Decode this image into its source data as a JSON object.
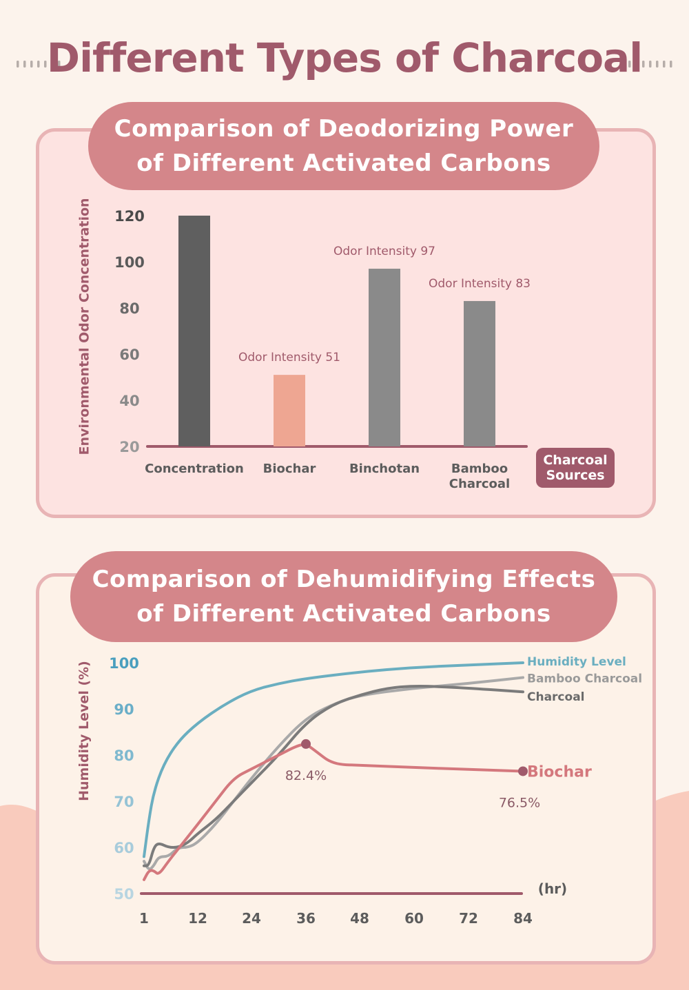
{
  "title": "Different Types of Charcoal",
  "colors": {
    "title": "#a05a6b",
    "pill": "#d4868a",
    "concentration": "#5f5f5f",
    "biochar": "#eea692",
    "binchotan": "#8a8a8a",
    "bamboo": "#8a8a8a",
    "humidity": "#6aaec0",
    "bamboo_line": "#a9a9a9",
    "charcoal_line": "#7b7b7b",
    "biochar_line": "#d4787d",
    "axis": "#a05a6b"
  },
  "odor_chart": {
    "title_line1": "Comparison of Deodorizing Power",
    "title_line2": "of Different Activated Carbons",
    "source_badge_line1": "Charcoal",
    "source_badge_line2": "Sources",
    "chart_data": {
      "type": "bar",
      "title": "Comparison of Deodorizing Power of Different Activated Carbons",
      "ylabel": "Environmental Odor Concentration",
      "xlabel": "Charcoal Sources",
      "ylim": [
        20,
        120
      ],
      "yticks": [
        120,
        100,
        80,
        60,
        40,
        20
      ],
      "categories": [
        "Concentration",
        "Biochar",
        "Binchotan",
        "Bamboo Charcoal"
      ],
      "category_lines": [
        [
          "Concentration"
        ],
        [
          "Biochar"
        ],
        [
          "Binchotan"
        ],
        [
          "Bamboo",
          "Charcoal"
        ]
      ],
      "values": [
        120,
        51,
        97,
        83
      ],
      "labels": [
        "",
        "Odor Intensity 51",
        "Odor Intensity 97",
        "Odor Intensity 83"
      ]
    }
  },
  "humidity_chart": {
    "title_line1": "Comparison of Dehumidifying Effects",
    "title_line2": "of Different Activated Carbons",
    "chart_data": {
      "type": "line",
      "title": "Comparison of Dehumidifying Effects of Different Activated Carbons",
      "ylabel": "Humidity Level (%)",
      "xlabel": "(hr)",
      "xlim": [
        1,
        84
      ],
      "ylim": [
        50,
        100
      ],
      "xticks": [
        1,
        12,
        24,
        36,
        48,
        60,
        72,
        84
      ],
      "yticks": [
        100,
        90,
        80,
        70,
        60,
        50
      ],
      "series": [
        {
          "name": "Humidity Level",
          "x": [
            1,
            2,
            3,
            5,
            8,
            12,
            18,
            24,
            30,
            36,
            48,
            60,
            72,
            84
          ],
          "values": [
            58,
            66,
            72,
            78,
            83,
            87,
            91,
            94,
            95.5,
            96.6,
            98,
            99,
            99.5,
            100
          ]
        },
        {
          "name": "Bamboo Charcoal",
          "x": [
            1,
            2,
            3,
            4,
            6,
            8,
            10,
            12,
            16,
            20,
            24,
            30,
            36,
            42,
            48,
            60,
            72,
            84
          ],
          "values": [
            57,
            55,
            56,
            58,
            58,
            60,
            60,
            61,
            65,
            70,
            75,
            82,
            88,
            91,
            93,
            94.5,
            95.5,
            96.8
          ]
        },
        {
          "name": "Charcoal",
          "x": [
            1,
            2,
            3,
            4,
            6,
            8,
            10,
            12,
            16,
            20,
            24,
            30,
            36,
            42,
            48,
            54,
            60,
            66,
            72,
            84
          ],
          "values": [
            56,
            56,
            60,
            61,
            60,
            60,
            61,
            63,
            66,
            70,
            74,
            80,
            87,
            91,
            93,
            94.5,
            95,
            94.8,
            94.5,
            93.7
          ]
        },
        {
          "name": "Biochar",
          "x": [
            1,
            2,
            3,
            4,
            6,
            9,
            12,
            16,
            20,
            24,
            30,
            34,
            36,
            38,
            42,
            48,
            60,
            72,
            84
          ],
          "values": [
            53,
            55,
            55,
            54,
            57,
            61,
            65,
            70,
            75,
            77,
            80,
            82,
            82.4,
            81,
            78,
            77.8,
            77.3,
            76.9,
            76.5
          ]
        }
      ],
      "annotations": [
        {
          "series": "Biochar",
          "x": 36,
          "y": 82.4,
          "label": "82.4%"
        },
        {
          "series": "Biochar",
          "x": 84,
          "y": 76.5,
          "label": "76.5%"
        }
      ]
    }
  }
}
